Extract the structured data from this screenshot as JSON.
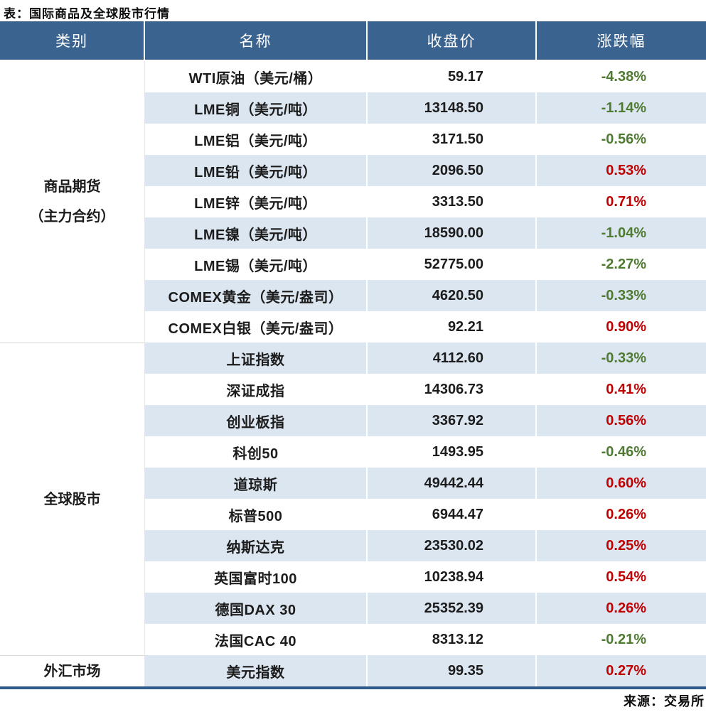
{
  "title": "表：国际商品及全球股市行情",
  "source_note": "来源：交易所",
  "colors": {
    "header_bg": "#3a6390",
    "header_text": "#ffffff",
    "row_bg": "#ffffff",
    "row_alt_bg": "#dce6f1",
    "body_text": "#1c1c1c",
    "up_red": "#c00000",
    "down_green": "#4f7b31",
    "bottom_border": "#305a8c",
    "category_divider": "#d9d9d9"
  },
  "table": {
    "headers": [
      "类别",
      "名称",
      "收盘价",
      "涨跌幅"
    ],
    "groups": [
      {
        "category_lines": [
          "商品期货",
          "（主力合约）"
        ],
        "rows": [
          {
            "name": "WTI原油（美元/桶）",
            "close": "59.17",
            "change": "-4.38%",
            "direction": "down"
          },
          {
            "name": "LME铜（美元/吨）",
            "close": "13148.50",
            "change": "-1.14%",
            "direction": "down"
          },
          {
            "name": "LME铝（美元/吨）",
            "close": "3171.50",
            "change": "-0.56%",
            "direction": "down"
          },
          {
            "name": "LME铅（美元/吨）",
            "close": "2096.50",
            "change": "0.53%",
            "direction": "up"
          },
          {
            "name": "LME锌（美元/吨）",
            "close": "3313.50",
            "change": "0.71%",
            "direction": "up"
          },
          {
            "name": "LME镍（美元/吨）",
            "close": "18590.00",
            "change": "-1.04%",
            "direction": "down"
          },
          {
            "name": "LME锡（美元/吨）",
            "close": "52775.00",
            "change": "-2.27%",
            "direction": "down"
          },
          {
            "name": "COMEX黄金（美元/盎司）",
            "close": "4620.50",
            "change": "-0.33%",
            "direction": "down"
          },
          {
            "name": "COMEX白银（美元/盎司）",
            "close": "92.21",
            "change": "0.90%",
            "direction": "up"
          }
        ]
      },
      {
        "category_lines": [
          "全球股市"
        ],
        "rows": [
          {
            "name": "上证指数",
            "close": "4112.60",
            "change": "-0.33%",
            "direction": "down"
          },
          {
            "name": "深证成指",
            "close": "14306.73",
            "change": "0.41%",
            "direction": "up"
          },
          {
            "name": "创业板指",
            "close": "3367.92",
            "change": "0.56%",
            "direction": "up"
          },
          {
            "name": "科创50",
            "close": "1493.95",
            "change": "-0.46%",
            "direction": "down"
          },
          {
            "name": "道琼斯",
            "close": "49442.44",
            "change": "0.60%",
            "direction": "up"
          },
          {
            "name": "标普500",
            "close": "6944.47",
            "change": "0.26%",
            "direction": "up"
          },
          {
            "name": "纳斯达克",
            "close": "23530.02",
            "change": "0.25%",
            "direction": "up"
          },
          {
            "name": "英国富时100",
            "close": "10238.94",
            "change": "0.54%",
            "direction": "up"
          },
          {
            "name": "德国DAX 30",
            "close": "25352.39",
            "change": "0.26%",
            "direction": "up"
          },
          {
            "name": "法国CAC 40",
            "close": "8313.12",
            "change": "-0.21%",
            "direction": "down"
          }
        ]
      },
      {
        "category_lines": [
          "外汇市场"
        ],
        "rows": [
          {
            "name": "美元指数",
            "close": "99.35",
            "change": "0.27%",
            "direction": "up"
          }
        ]
      }
    ]
  },
  "chart_data": {
    "type": "table",
    "title": "表：国际商品及全球股市行情",
    "columns": [
      "类别",
      "名称",
      "收盘价",
      "涨跌幅"
    ],
    "rows": [
      [
        "商品期货（主力合约）",
        "WTI原油（美元/桶）",
        59.17,
        -4.38
      ],
      [
        "商品期货（主力合约）",
        "LME铜（美元/吨）",
        13148.5,
        -1.14
      ],
      [
        "商品期货（主力合约）",
        "LME铝（美元/吨）",
        3171.5,
        -0.56
      ],
      [
        "商品期货（主力合约）",
        "LME铅（美元/吨）",
        2096.5,
        0.53
      ],
      [
        "商品期货（主力合约）",
        "LME锌（美元/吨）",
        3313.5,
        0.71
      ],
      [
        "商品期货（主力合约）",
        "LME镍（美元/吨）",
        18590.0,
        -1.04
      ],
      [
        "商品期货（主力合约）",
        "LME锡（美元/吨）",
        52775.0,
        -2.27
      ],
      [
        "商品期货（主力合约）",
        "COMEX黄金（美元/盎司）",
        4620.5,
        -0.33
      ],
      [
        "商品期货（主力合约）",
        "COMEX白银（美元/盎司）",
        92.21,
        0.9
      ],
      [
        "全球股市",
        "上证指数",
        4112.6,
        -0.33
      ],
      [
        "全球股市",
        "深证成指",
        14306.73,
        0.41
      ],
      [
        "全球股市",
        "创业板指",
        3367.92,
        0.56
      ],
      [
        "全球股市",
        "科创50",
        1493.95,
        -0.46
      ],
      [
        "全球股市",
        "道琼斯",
        49442.44,
        0.6
      ],
      [
        "全球股市",
        "标普500",
        6944.47,
        0.26
      ],
      [
        "全球股市",
        "纳斯达克",
        23530.02,
        0.25
      ],
      [
        "全球股市",
        "英国富时100",
        10238.94,
        0.54
      ],
      [
        "全球股市",
        "德国DAX 30",
        25352.39,
        0.26
      ],
      [
        "全球股市",
        "法国CAC 40",
        8313.12,
        -0.21
      ],
      [
        "外汇市场",
        "美元指数",
        99.35,
        0.27
      ]
    ],
    "notes": "涨跌幅单位为百分比；负值显示为绿色，正值显示为红色",
    "source": "来源：交易所"
  }
}
